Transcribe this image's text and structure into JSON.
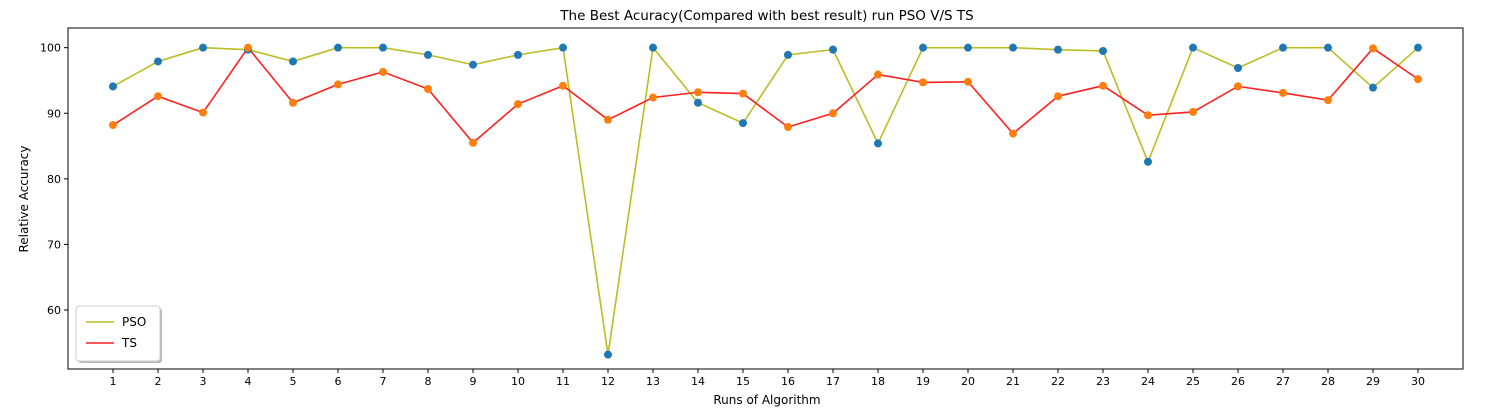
{
  "chart_data": {
    "type": "line",
    "title": "The Best Acuracy(Compared with best result) run PSO V/S TS",
    "xlabel": "Runs of Algorithm",
    "ylabel": "Relative Accuracy",
    "x": [
      1,
      2,
      3,
      4,
      5,
      6,
      7,
      8,
      9,
      10,
      11,
      12,
      13,
      14,
      15,
      16,
      17,
      18,
      19,
      20,
      21,
      22,
      23,
      24,
      25,
      26,
      27,
      28,
      29,
      30
    ],
    "x_ticks": [
      "1",
      "2",
      "3",
      "4",
      "5",
      "6",
      "7",
      "8",
      "9",
      "10",
      "11",
      "12",
      "13",
      "14",
      "15",
      "16",
      "17",
      "18",
      "19",
      "20",
      "21",
      "22",
      "23",
      "24",
      "25",
      "26",
      "27",
      "28",
      "29",
      "30"
    ],
    "y_ticks": [
      "60",
      "70",
      "80",
      "90",
      "100"
    ],
    "y_tick_values": [
      60,
      70,
      80,
      90,
      100
    ],
    "xlim": [
      0,
      31
    ],
    "ylim": [
      51,
      103
    ],
    "grid": false,
    "legend_position": "lower left",
    "series": [
      {
        "name": "PSO",
        "line_color": "#bcbd22",
        "marker_color": "#1f77b4",
        "values": [
          94.1,
          97.9,
          100.0,
          99.7,
          97.9,
          100.0,
          100.0,
          98.9,
          97.4,
          98.9,
          100.0,
          53.2,
          100.0,
          91.6,
          88.5,
          98.9,
          99.7,
          85.4,
          100.0,
          100.0,
          100.0,
          99.7,
          99.5,
          82.6,
          100.0,
          96.9,
          100.0,
          100.0,
          93.9,
          100.0
        ]
      },
      {
        "name": "TS",
        "line_color": "#ff2020",
        "marker_color": "#ff7f0e",
        "values": [
          88.2,
          92.6,
          90.1,
          100.0,
          91.6,
          94.4,
          96.3,
          93.7,
          85.5,
          91.4,
          94.2,
          89.0,
          92.4,
          93.2,
          93.0,
          87.9,
          90.0,
          95.9,
          94.7,
          94.8,
          86.9,
          92.6,
          94.2,
          89.7,
          90.2,
          94.1,
          93.1,
          92.0,
          99.9,
          95.2
        ]
      }
    ]
  }
}
